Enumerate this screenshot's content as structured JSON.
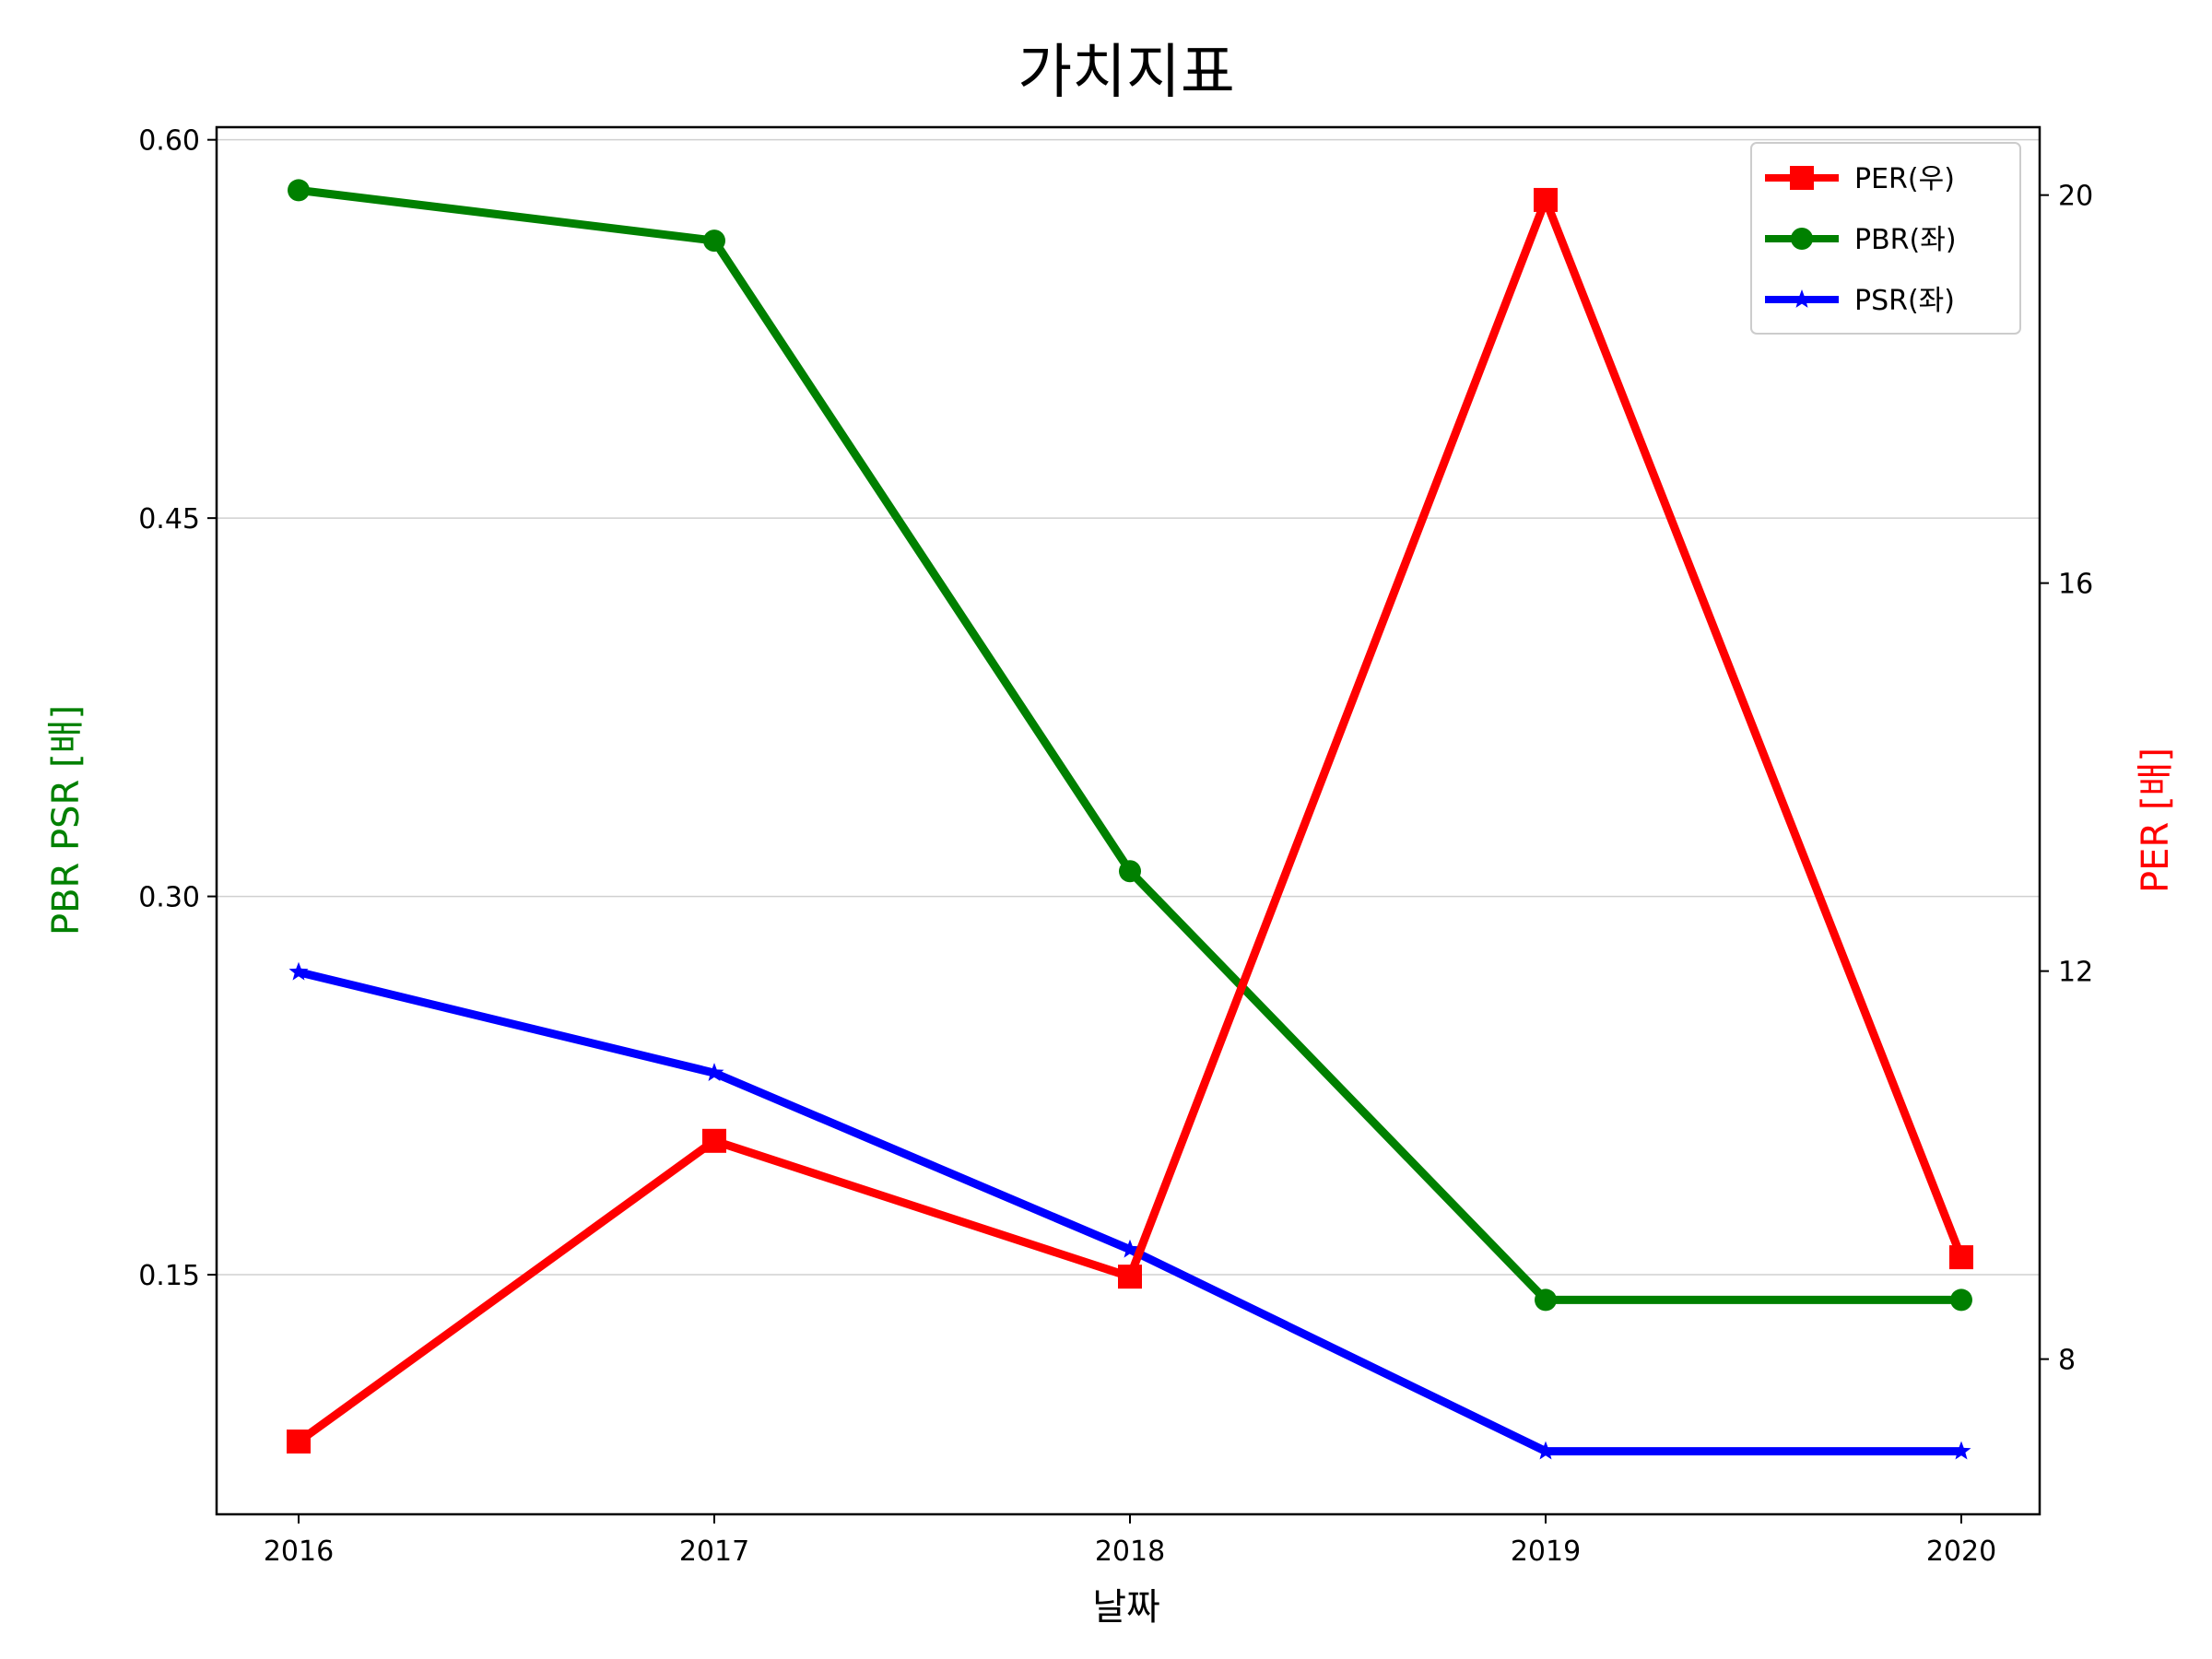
{
  "chart_data": {
    "type": "line",
    "title": "가치지표",
    "xlabel": "날짜",
    "ylabel_left": "PBR PSR [배]",
    "ylabel_right": "PER [배]",
    "categories": [
      "2016",
      "2017",
      "2018",
      "2019",
      "2020"
    ],
    "left_axis": {
      "ylim": [
        0.055,
        0.605
      ],
      "ticks": [
        0.15,
        0.3,
        0.45,
        0.6
      ],
      "tick_labels": [
        "0.15",
        "0.30",
        "0.45",
        "0.60"
      ]
    },
    "right_axis": {
      "ylim": [
        6.4,
        20.7
      ],
      "ticks": [
        8,
        12,
        16,
        20
      ],
      "tick_labels": [
        "8",
        "12",
        "16",
        "20"
      ]
    },
    "grid": "horizontal (left axis)",
    "legend_position": "top-right",
    "series": [
      {
        "name": "PER(우)",
        "axis": "right",
        "color": "#ff0000",
        "marker": "square",
        "values": [
          7.15,
          10.25,
          8.85,
          19.95,
          9.05
        ]
      },
      {
        "name": "PBR(좌)",
        "axis": "left",
        "color": "#008000",
        "marker": "circle",
        "values": [
          0.58,
          0.56,
          0.31,
          0.14,
          0.14
        ]
      },
      {
        "name": "PSR(좌)",
        "axis": "left",
        "color": "#0000ff",
        "marker": "star",
        "values": [
          0.27,
          0.23,
          0.16,
          0.08,
          0.08
        ]
      }
    ]
  }
}
